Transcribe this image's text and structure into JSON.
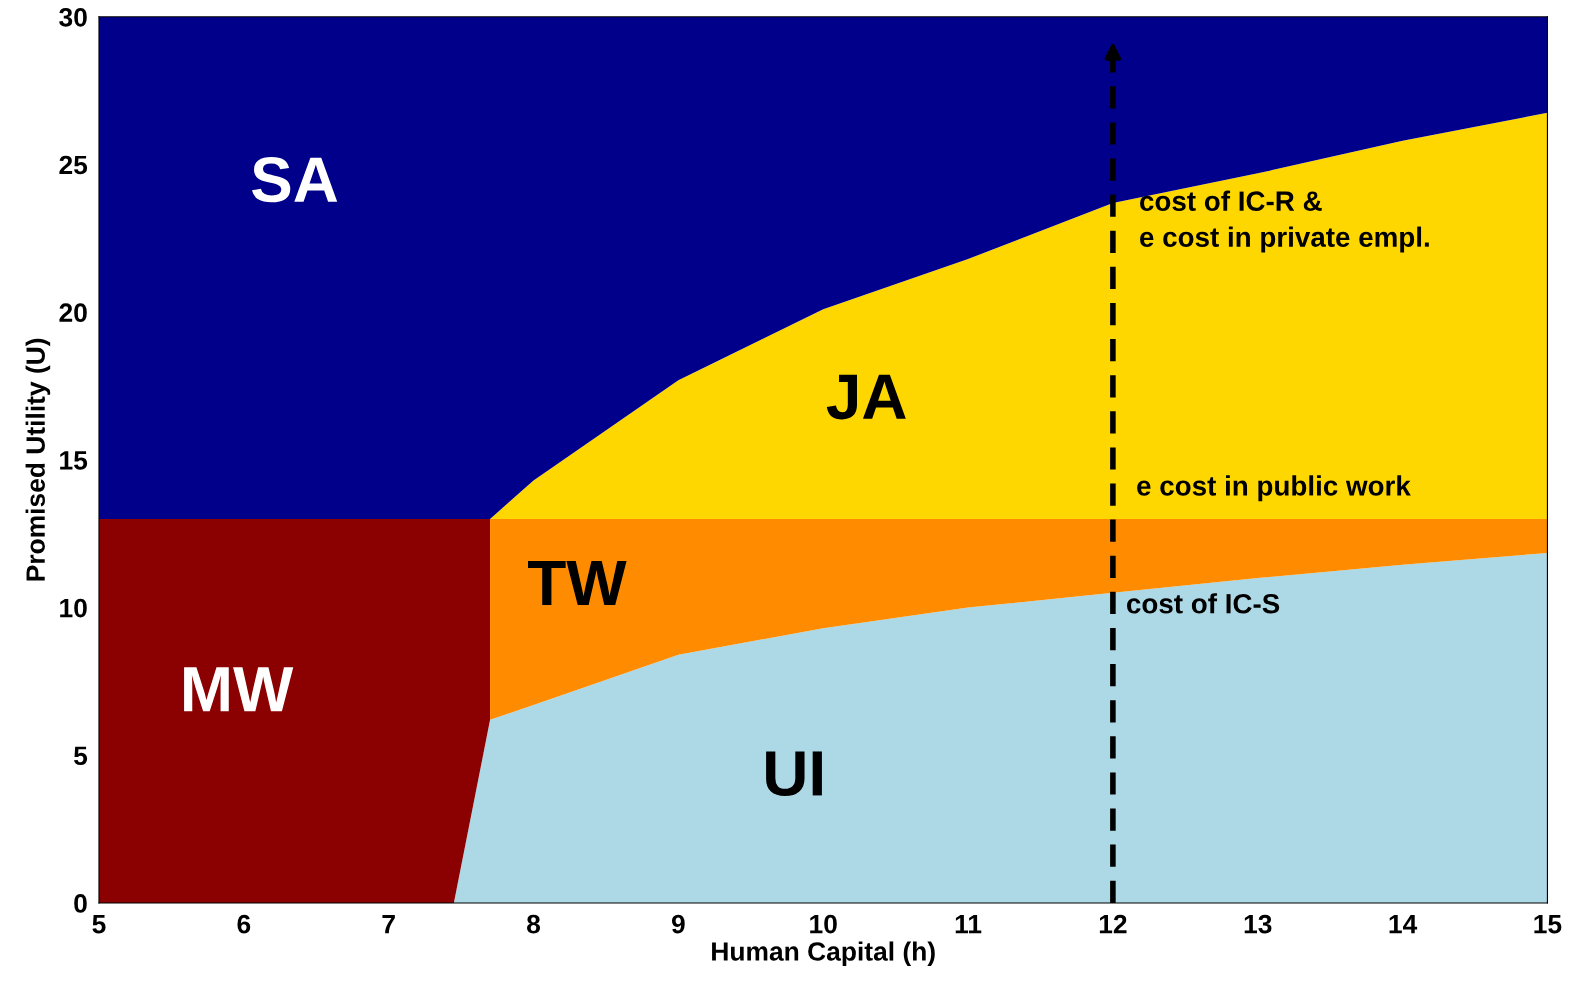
{
  "chart_data": {
    "type": "area",
    "stacked": true,
    "xlabel": "Human Capital (h)",
    "ylabel": "Promised Utility (U)",
    "x": [
      5,
      6,
      7,
      7.45,
      7.7,
      7.7,
      8,
      9,
      10,
      11,
      12,
      13,
      14,
      15
    ],
    "series": [
      {
        "name": "UI",
        "color": "#add8e6",
        "values": [
          0,
          0,
          0,
          0,
          6.2,
          6.2,
          6.7,
          8.4,
          9.3,
          10.0,
          10.5,
          11.0,
          11.45,
          11.85
        ]
      },
      {
        "name": "MW",
        "color": "#8b0000",
        "values": [
          13,
          13,
          13,
          13,
          6.8,
          0,
          0,
          0,
          0,
          0,
          0,
          0,
          0,
          0
        ]
      },
      {
        "name": "TW",
        "color": "#ff8c00",
        "values": [
          0,
          0,
          0,
          0,
          0,
          6.8,
          6.3,
          4.6,
          3.7,
          3.0,
          2.5,
          2.0,
          1.55,
          1.15
        ]
      },
      {
        "name": "JA",
        "color": "#ffd700",
        "values": [
          0,
          0,
          0,
          0,
          0,
          0,
          1.3,
          4.7,
          7.1,
          8.8,
          10.7,
          11.7,
          12.8,
          13.75
        ]
      },
      {
        "name": "SA",
        "color": "#00008b",
        "values": [
          17,
          17,
          17,
          17,
          17,
          17,
          15.7,
          12.3,
          9.9,
          8.2,
          6.3,
          5.3,
          4.2,
          3.25
        ]
      }
    ],
    "xlim": [
      5,
      15
    ],
    "ylim": [
      0,
      30
    ],
    "xticks": [
      5,
      6,
      7,
      8,
      9,
      10,
      11,
      12,
      13,
      14,
      15
    ],
    "yticks": [
      0,
      5,
      10,
      15,
      20,
      25,
      30
    ],
    "grid": false,
    "ref_lines": [
      {
        "axis": "x",
        "value": 12,
        "color": "#000000",
        "line_style": "dashed"
      }
    ],
    "annotations": [
      "cost of IC-R &\ne cost in private empl.",
      "e cost in public work",
      "cost of IC-S"
    ]
  }
}
